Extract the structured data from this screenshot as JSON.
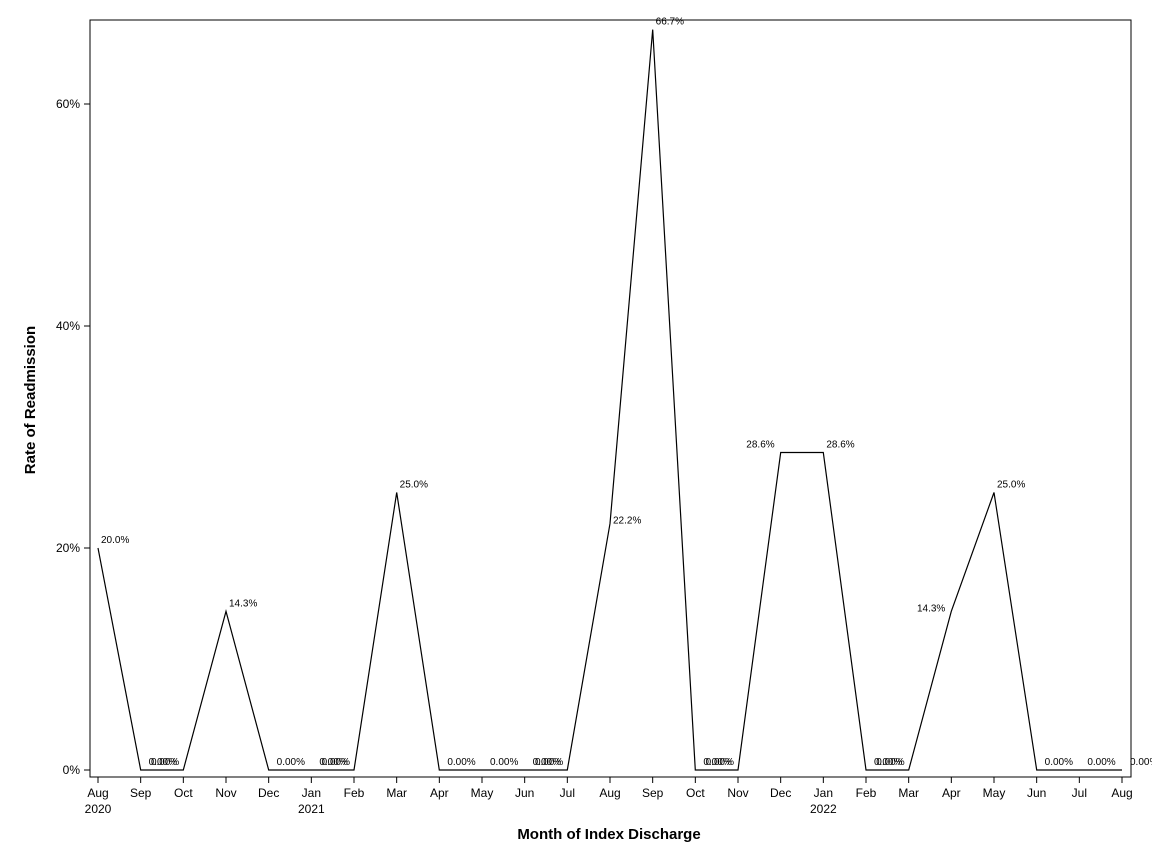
{
  "chart_data": {
    "type": "line",
    "title": "",
    "xlabel": "Month of Index Discharge",
    "ylabel": "Rate of Readmission",
    "ylim": [
      0,
      67
    ],
    "grid": false,
    "line_color": "#000000",
    "categories": [
      "Aug",
      "Sep",
      "Oct",
      "Nov",
      "Dec",
      "Jan",
      "Feb",
      "Mar",
      "Apr",
      "May",
      "Jun",
      "Jul",
      "Aug",
      "Sep",
      "Oct",
      "Nov",
      "Dec",
      "Jan",
      "Feb",
      "Mar",
      "Apr",
      "May",
      "Jun",
      "Jul",
      "Aug"
    ],
    "year_labels": [
      {
        "index": 0,
        "label": "2020"
      },
      {
        "index": 5,
        "label": "2021"
      },
      {
        "index": 17,
        "label": "2022"
      }
    ],
    "y_ticks": [
      {
        "value": 0,
        "label": "0%"
      },
      {
        "value": 20,
        "label": "20%"
      },
      {
        "value": 40,
        "label": "40%"
      },
      {
        "value": 60,
        "label": "60%"
      }
    ],
    "series": [
      {
        "values": [
          20.0,
          0,
          0,
          14.3,
          0,
          0,
          0,
          25.0,
          0,
          0,
          0,
          0,
          22.2,
          66.7,
          0,
          0,
          28.6,
          28.6,
          0,
          0,
          14.3,
          25.0,
          0,
          0,
          0
        ],
        "labels": [
          "20.0%",
          "0.00%",
          "0.00%",
          "14.3%",
          "0.00%",
          "0.00%",
          "0.00%",
          "25.0%",
          "0.00%",
          "0.00%",
          "0.00%",
          "0.00%",
          "22.2%",
          "66.7%",
          "0.00%",
          "0.00%",
          "28.6%",
          "28.6%",
          "0.00%",
          "0.00%",
          "14.3%",
          "25.0%",
          "0.00%",
          "0.00%",
          "0.00%"
        ]
      }
    ]
  }
}
